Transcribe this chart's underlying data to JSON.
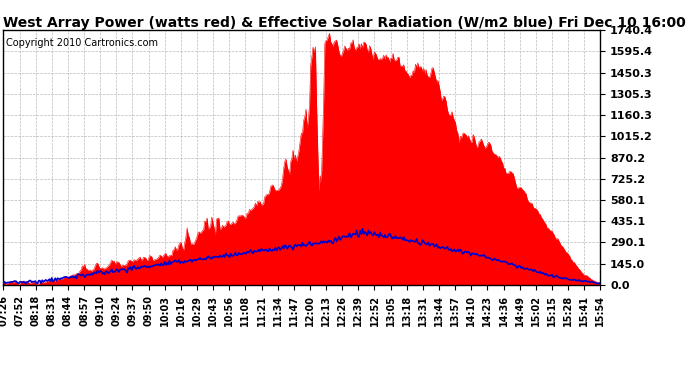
{
  "title": "West Array Power (watts red) & Effective Solar Radiation (W/m2 blue) Fri Dec 10 16:00",
  "copyright": "Copyright 2010 Cartronics.com",
  "yticks": [
    0.0,
    145.0,
    290.1,
    435.1,
    580.1,
    725.2,
    870.2,
    1015.2,
    1160.3,
    1305.3,
    1450.3,
    1595.4,
    1740.4
  ],
  "ymax": 1740.4,
  "ymin": 0.0,
  "bar_color": "#ff0000",
  "line_color": "#0000cc",
  "bg_color": "#ffffff",
  "grid_color": "#aaaaaa",
  "title_fontsize": 10,
  "copyright_fontsize": 7,
  "xtick_fontsize": 7,
  "ytick_fontsize": 8,
  "xtick_labels": [
    "07:26",
    "07:52",
    "08:18",
    "08:31",
    "08:44",
    "08:57",
    "09:10",
    "09:24",
    "09:37",
    "09:50",
    "10:03",
    "10:16",
    "10:29",
    "10:43",
    "10:56",
    "11:08",
    "11:21",
    "11:34",
    "11:47",
    "12:00",
    "12:13",
    "12:26",
    "12:39",
    "12:52",
    "13:05",
    "13:18",
    "13:31",
    "13:44",
    "13:57",
    "14:10",
    "14:23",
    "14:36",
    "14:49",
    "15:02",
    "15:15",
    "15:28",
    "15:41",
    "15:54"
  ]
}
